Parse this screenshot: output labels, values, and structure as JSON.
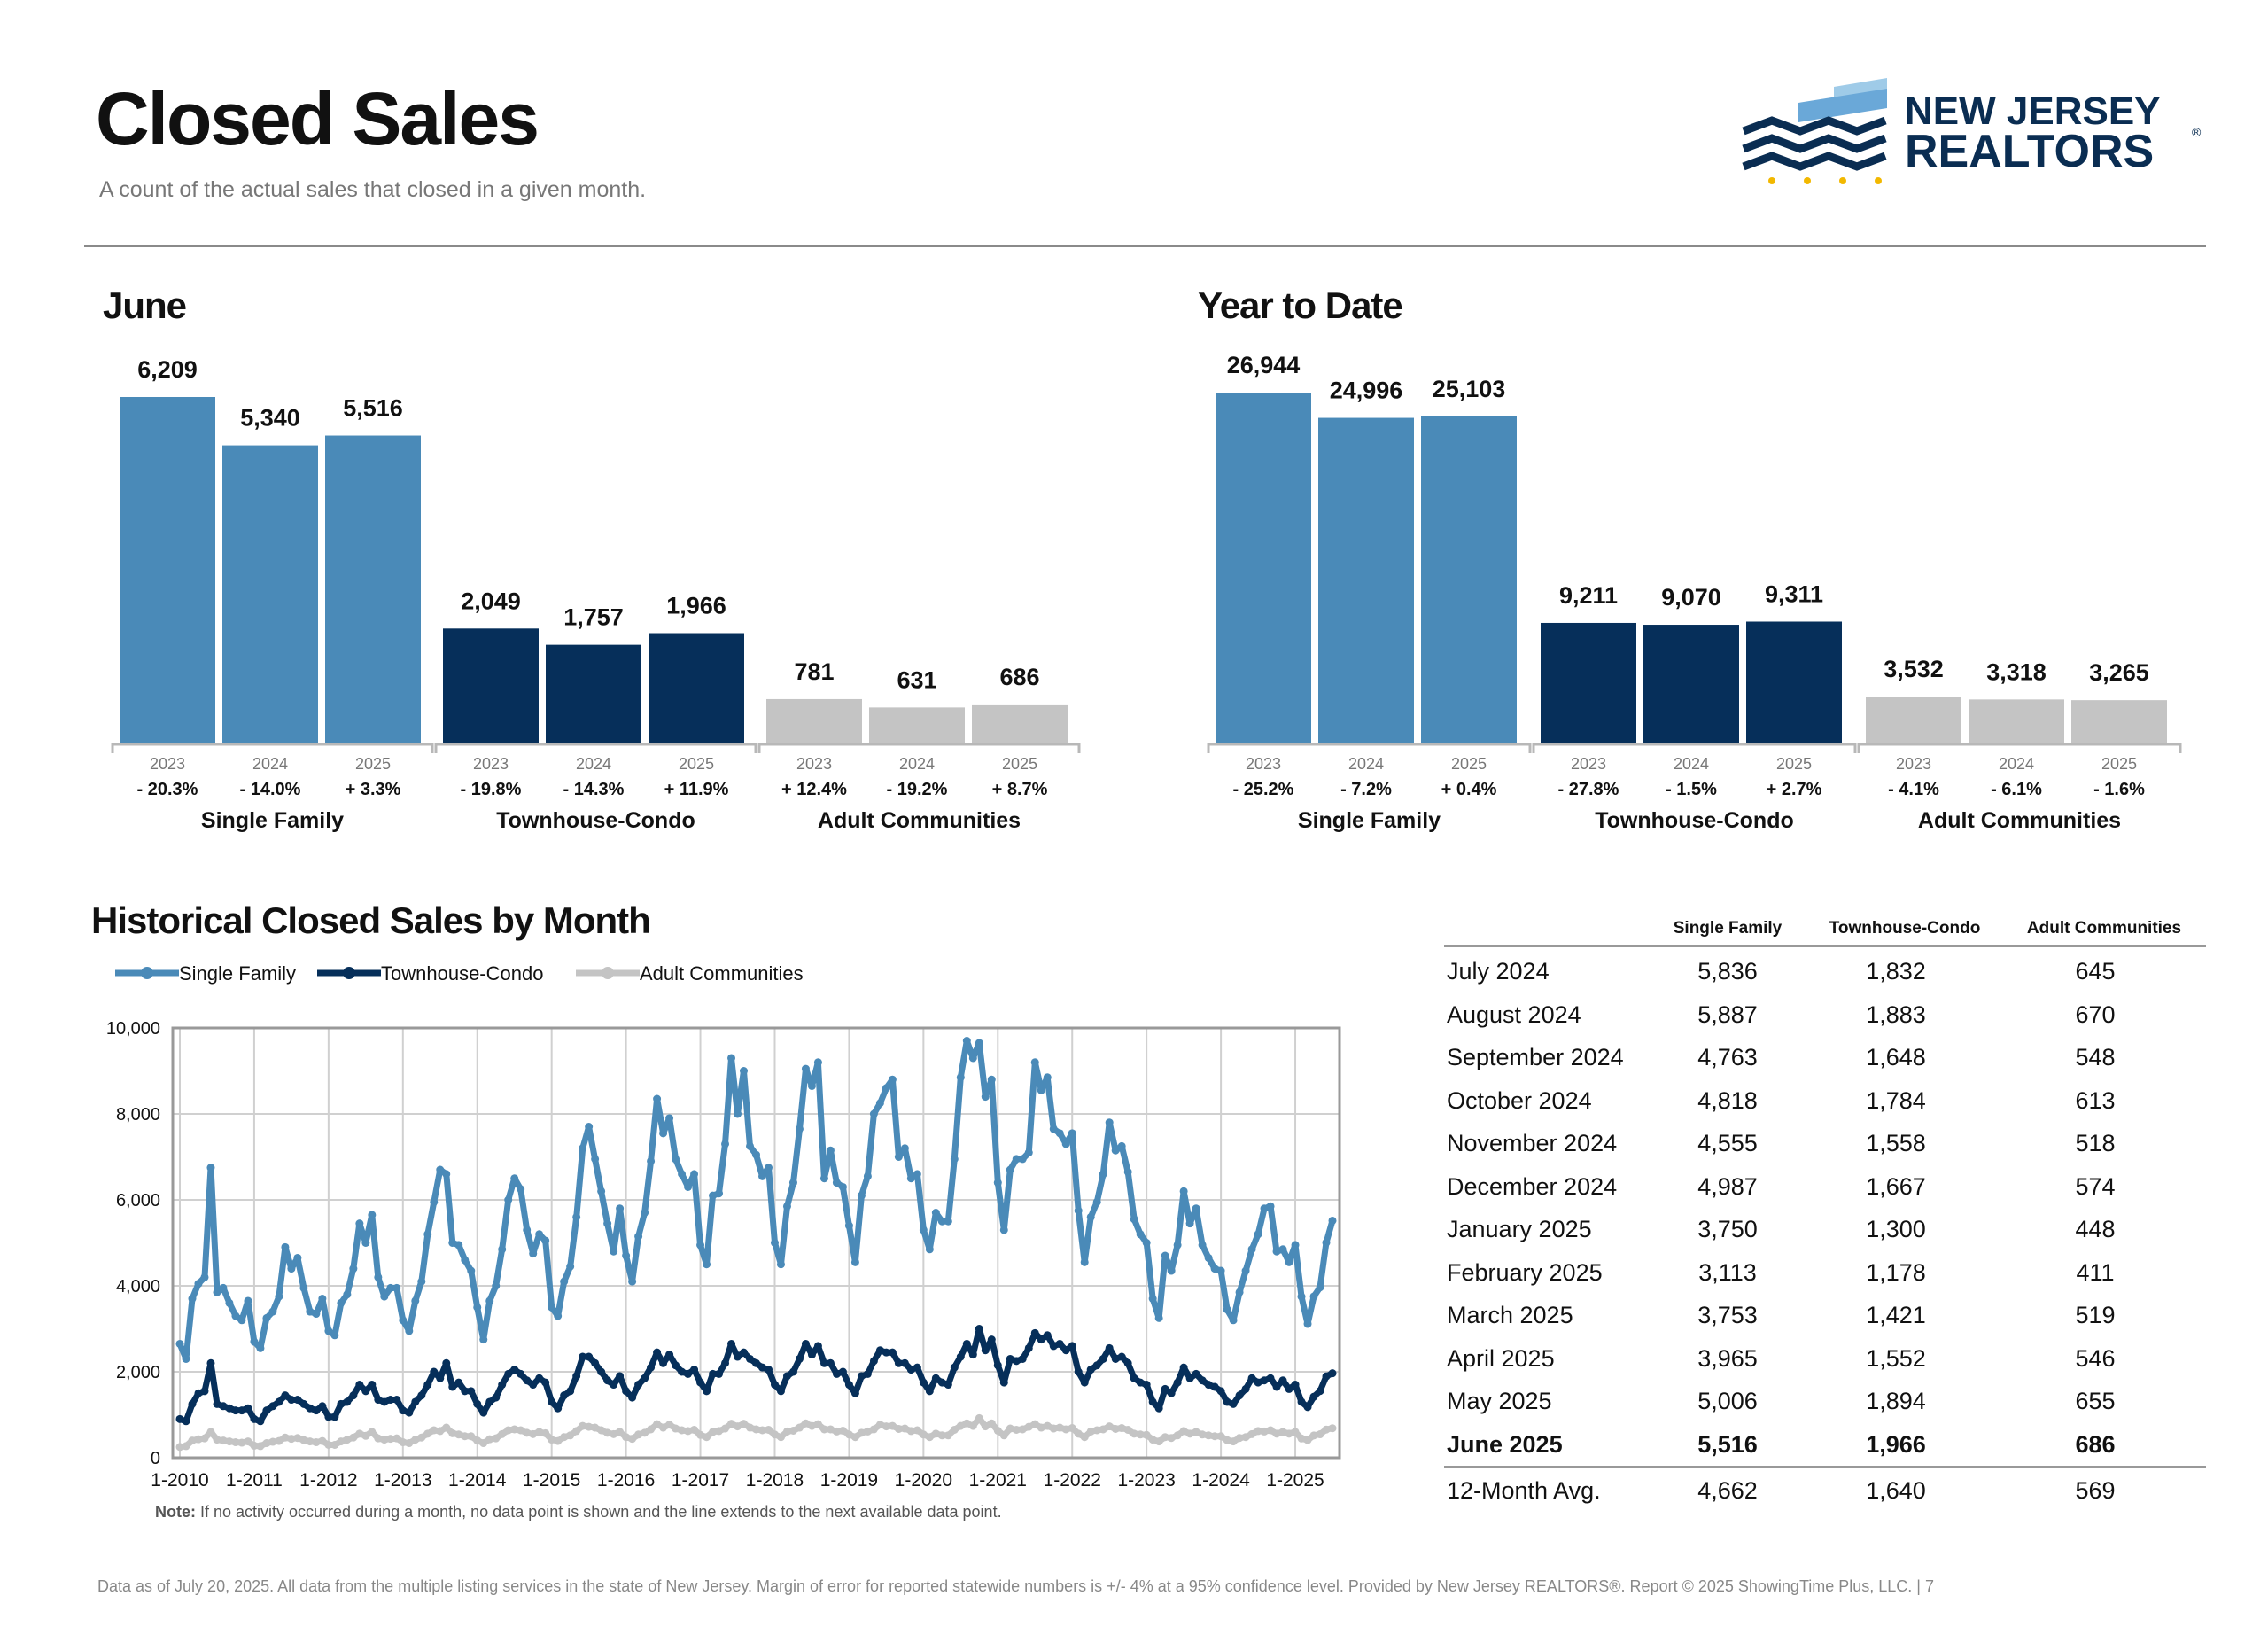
{
  "header": {
    "title": "Closed Sales",
    "subtitle": "A count of the actual sales that closed in a given month.",
    "logo_line1": "NEW JERSEY",
    "logo_line2": "REALTORS"
  },
  "colors": {
    "single_family": "#4a8ab8",
    "townhouse_condo": "#062f5a",
    "adult_communities": "#c4c4c4"
  },
  "june": {
    "section_title": "June",
    "groups": [
      {
        "name": "Single Family",
        "color": "#4a8ab8",
        "years": [
          "2023",
          "2024",
          "2025"
        ],
        "values": [
          6209,
          5340,
          5516
        ],
        "labels": [
          "6,209",
          "5,340",
          "5,516"
        ],
        "changes": [
          "- 20.3%",
          "- 14.0%",
          "+ 3.3%"
        ]
      },
      {
        "name": "Townhouse-Condo",
        "color": "#062f5a",
        "years": [
          "2023",
          "2024",
          "2025"
        ],
        "values": [
          2049,
          1757,
          1966
        ],
        "labels": [
          "2,049",
          "1,757",
          "1,966"
        ],
        "changes": [
          "- 19.8%",
          "- 14.3%",
          "+ 11.9%"
        ]
      },
      {
        "name": "Adult Communities",
        "color": "#c4c4c4",
        "years": [
          "2023",
          "2024",
          "2025"
        ],
        "values": [
          781,
          631,
          686
        ],
        "labels": [
          "781",
          "631",
          "686"
        ],
        "changes": [
          "+ 12.4%",
          "- 19.2%",
          "+ 8.7%"
        ]
      }
    ]
  },
  "ytd": {
    "section_title": "Year to Date",
    "groups": [
      {
        "name": "Single Family",
        "color": "#4a8ab8",
        "years": [
          "2023",
          "2024",
          "2025"
        ],
        "values": [
          26944,
          24996,
          25103
        ],
        "labels": [
          "26,944",
          "24,996",
          "25,103"
        ],
        "changes": [
          "- 25.2%",
          "- 7.2%",
          "+ 0.4%"
        ]
      },
      {
        "name": "Townhouse-Condo",
        "color": "#062f5a",
        "years": [
          "2023",
          "2024",
          "2025"
        ],
        "values": [
          9211,
          9070,
          9311
        ],
        "labels": [
          "9,211",
          "9,070",
          "9,311"
        ],
        "changes": [
          "- 27.8%",
          "- 1.5%",
          "+ 2.7%"
        ]
      },
      {
        "name": "Adult Communities",
        "color": "#c4c4c4",
        "years": [
          "2023",
          "2024",
          "2025"
        ],
        "values": [
          3532,
          3318,
          3265
        ],
        "labels": [
          "3,532",
          "3,318",
          "3,265"
        ],
        "changes": [
          "- 4.1%",
          "- 6.1%",
          "- 1.6%"
        ]
      }
    ]
  },
  "historical": {
    "section_title": "Historical Closed Sales by Month",
    "note_label": "Note:",
    "note_text": " If no activity occurred during a month, no data point is shown and the line extends to the next available data point."
  },
  "table": {
    "headers": [
      "Single Family",
      "Townhouse-Condo",
      "Adult Communities"
    ],
    "rows": [
      {
        "month": "July 2024",
        "sf": "5,836",
        "tc": "1,832",
        "ac": "645"
      },
      {
        "month": "August 2024",
        "sf": "5,887",
        "tc": "1,883",
        "ac": "670"
      },
      {
        "month": "September 2024",
        "sf": "4,763",
        "tc": "1,648",
        "ac": "548"
      },
      {
        "month": "October 2024",
        "sf": "4,818",
        "tc": "1,784",
        "ac": "613"
      },
      {
        "month": "November 2024",
        "sf": "4,555",
        "tc": "1,558",
        "ac": "518"
      },
      {
        "month": "December 2024",
        "sf": "4,987",
        "tc": "1,667",
        "ac": "574"
      },
      {
        "month": "January 2025",
        "sf": "3,750",
        "tc": "1,300",
        "ac": "448"
      },
      {
        "month": "February 2025",
        "sf": "3,113",
        "tc": "1,178",
        "ac": "411"
      },
      {
        "month": "March 2025",
        "sf": "3,753",
        "tc": "1,421",
        "ac": "519"
      },
      {
        "month": "April 2025",
        "sf": "3,965",
        "tc": "1,552",
        "ac": "546"
      },
      {
        "month": "May 2025",
        "sf": "5,006",
        "tc": "1,894",
        "ac": "655"
      },
      {
        "month": "June 2025",
        "sf": "5,516",
        "tc": "1,966",
        "ac": "686",
        "bold": true
      }
    ],
    "avg": {
      "month": "12-Month Avg.",
      "sf": "4,662",
      "tc": "1,640",
      "ac": "569"
    }
  },
  "footer": "Data as of July 20, 2025. All data from the multiple listing services in the state of New Jersey. Margin of error for reported statewide numbers is +/- 4% at a 95% confidence level. Provided by New Jersey REALTORS®. Report © 2025 ShowingTime Plus, LLC. | 7",
  "chart_data": [
    {
      "type": "bar",
      "title": "June",
      "categories": [
        "Single Family",
        "Townhouse-Condo",
        "Adult Communities"
      ],
      "years": [
        "2023",
        "2024",
        "2025"
      ],
      "series": [
        {
          "name": "Single Family",
          "values": [
            6209,
            5340,
            5516
          ]
        },
        {
          "name": "Townhouse-Condo",
          "values": [
            2049,
            1757,
            1966
          ]
        },
        {
          "name": "Adult Communities",
          "values": [
            781,
            631,
            686
          ]
        }
      ]
    },
    {
      "type": "bar",
      "title": "Year to Date",
      "categories": [
        "Single Family",
        "Townhouse-Condo",
        "Adult Communities"
      ],
      "years": [
        "2023",
        "2024",
        "2025"
      ],
      "series": [
        {
          "name": "Single Family",
          "values": [
            26944,
            24996,
            25103
          ]
        },
        {
          "name": "Townhouse-Condo",
          "values": [
            9211,
            9070,
            9311
          ]
        },
        {
          "name": "Adult Communities",
          "values": [
            3532,
            3318,
            3265
          ]
        }
      ]
    },
    {
      "type": "line",
      "title": "Historical Closed Sales by Month",
      "x_start": "1-2010",
      "x_ticks": [
        "1-2010",
        "1-2011",
        "1-2012",
        "1-2013",
        "1-2014",
        "1-2015",
        "1-2016",
        "1-2017",
        "1-2018",
        "1-2019",
        "1-2020",
        "1-2021",
        "1-2022",
        "1-2023",
        "1-2024",
        "1-2025"
      ],
      "y_ticks": [
        "0",
        "2,000",
        "4,000",
        "6,000",
        "8,000",
        "10,000"
      ],
      "ylim": [
        0,
        10000
      ],
      "grid": true,
      "legend": "top-left",
      "series": [
        {
          "name": "Single Family",
          "values": [
            2650,
            2300,
            3700,
            4050,
            4200,
            6750,
            3850,
            3950,
            3600,
            3300,
            3200,
            3650,
            2700,
            2550,
            3250,
            3400,
            3750,
            4900,
            4400,
            4650,
            3950,
            3400,
            3350,
            3700,
            2950,
            2850,
            3600,
            3800,
            4400,
            5450,
            5000,
            5650,
            4200,
            3750,
            3950,
            3950,
            3200,
            2950,
            3650,
            4100,
            5200,
            5950,
            6700,
            6600,
            5000,
            4950,
            4600,
            4350,
            3500,
            2750,
            3650,
            4000,
            4850,
            6000,
            6500,
            6250,
            5300,
            4750,
            5200,
            5050,
            3500,
            3300,
            4100,
            4450,
            5600,
            7200,
            7700,
            6950,
            6200,
            5450,
            4800,
            5800,
            4700,
            4100,
            5150,
            5700,
            6900,
            8350,
            7550,
            7900,
            6950,
            6600,
            6300,
            6600,
            4950,
            4500,
            6100,
            6150,
            7300,
            9300,
            8000,
            9000,
            7250,
            7050,
            6550,
            6750,
            5000,
            4500,
            5850,
            6400,
            7650,
            9050,
            8650,
            9200,
            6500,
            7150,
            6400,
            6300,
            5400,
            4550,
            6100,
            6550,
            8000,
            8250,
            8600,
            8800,
            7000,
            7200,
            6500,
            6600,
            5300,
            4850,
            5700,
            5500,
            5500,
            6950,
            8850,
            9700,
            9300,
            9650,
            8400,
            8800,
            6400,
            5300,
            6700,
            6950,
            6950,
            7100,
            9200,
            8550,
            8850,
            7650,
            7550,
            7300,
            7550,
            5750,
            4550,
            5600,
            5950,
            6600,
            7800,
            7150,
            7250,
            6650,
            5550,
            5200,
            5000,
            3700,
            3250,
            4700,
            4350,
            4950,
            6200,
            5450,
            5800,
            4950,
            4650,
            4400,
            4350,
            3450,
            3200,
            3850,
            4350,
            4850,
            5200,
            5800,
            5850,
            4800,
            4850,
            4550,
            4950,
            3750,
            3113,
            3753,
            3965,
            5006,
            5516
          ]
        },
        {
          "name": "Townhouse-Condo",
          "values": [
            900,
            850,
            1250,
            1500,
            1550,
            2200,
            1250,
            1200,
            1150,
            1100,
            1100,
            1150,
            900,
            850,
            1100,
            1200,
            1300,
            1450,
            1350,
            1350,
            1250,
            1150,
            1100,
            1200,
            950,
            950,
            1250,
            1300,
            1450,
            1700,
            1550,
            1700,
            1350,
            1300,
            1350,
            1350,
            1100,
            1050,
            1300,
            1450,
            1700,
            2000,
            1850,
            2200,
            1650,
            1750,
            1550,
            1550,
            1250,
            1050,
            1300,
            1400,
            1700,
            1950,
            2050,
            1950,
            1800,
            1700,
            1850,
            1750,
            1300,
            1150,
            1450,
            1550,
            1900,
            2350,
            2350,
            2200,
            2000,
            1800,
            1700,
            1900,
            1550,
            1400,
            1700,
            1850,
            2100,
            2450,
            2200,
            2400,
            2150,
            2000,
            1950,
            2050,
            1750,
            1550,
            1950,
            1950,
            2200,
            2650,
            2350,
            2450,
            2300,
            2200,
            2100,
            2050,
            1700,
            1550,
            1900,
            2000,
            2300,
            2650,
            2400,
            2600,
            2200,
            2200,
            1950,
            2000,
            1700,
            1500,
            1900,
            1950,
            2250,
            2500,
            2450,
            2450,
            2200,
            2200,
            2050,
            2100,
            1750,
            1550,
            1850,
            1750,
            1700,
            2100,
            2350,
            2650,
            2400,
            3000,
            2500,
            2750,
            2150,
            1750,
            2300,
            2250,
            2300,
            2550,
            2900,
            2750,
            2850,
            2600,
            2650,
            2500,
            2600,
            2000,
            1750,
            2050,
            2150,
            2300,
            2550,
            2300,
            2350,
            2200,
            1850,
            1750,
            1700,
            1300,
            1150,
            1600,
            1500,
            1750,
            2100,
            1850,
            1950,
            1800,
            1700,
            1650,
            1550,
            1300,
            1250,
            1450,
            1600,
            1850,
            1750,
            1800,
            1850,
            1650,
            1800,
            1600,
            1700,
            1300,
            1178,
            1421,
            1552,
            1894,
            1966
          ]
        },
        {
          "name": "Adult Communities",
          "values": [
            250,
            270,
            400,
            430,
            450,
            600,
            420,
            400,
            380,
            360,
            350,
            380,
            280,
            270,
            340,
            370,
            390,
            470,
            440,
            460,
            410,
            380,
            360,
            390,
            300,
            300,
            380,
            420,
            470,
            560,
            510,
            600,
            450,
            420,
            440,
            450,
            360,
            340,
            420,
            470,
            560,
            640,
            620,
            700,
            570,
            540,
            500,
            500,
            400,
            340,
            430,
            450,
            550,
            640,
            660,
            640,
            580,
            550,
            600,
            570,
            420,
            390,
            480,
            520,
            620,
            740,
            720,
            700,
            640,
            580,
            550,
            600,
            480,
            440,
            540,
            580,
            660,
            780,
            700,
            770,
            680,
            640,
            620,
            650,
            530,
            480,
            600,
            620,
            680,
            790,
            730,
            790,
            700,
            660,
            640,
            650,
            540,
            480,
            610,
            630,
            700,
            800,
            740,
            780,
            660,
            660,
            610,
            630,
            540,
            480,
            580,
            610,
            660,
            770,
            730,
            740,
            670,
            680,
            620,
            640,
            540,
            480,
            560,
            520,
            520,
            650,
            740,
            800,
            740,
            920,
            730,
            800,
            630,
            520,
            680,
            650,
            660,
            720,
            780,
            700,
            740,
            680,
            700,
            660,
            690,
            560,
            480,
            610,
            640,
            660,
            730,
            670,
            690,
            650,
            560,
            540,
            530,
            420,
            380,
            480,
            460,
            520,
            620,
            560,
            600,
            540,
            520,
            500,
            500,
            410,
            380,
            460,
            480,
            550,
            620,
            610,
            640,
            560,
            600,
            560,
            600,
            448,
            411,
            519,
            546,
            655,
            686
          ]
        }
      ]
    }
  ]
}
